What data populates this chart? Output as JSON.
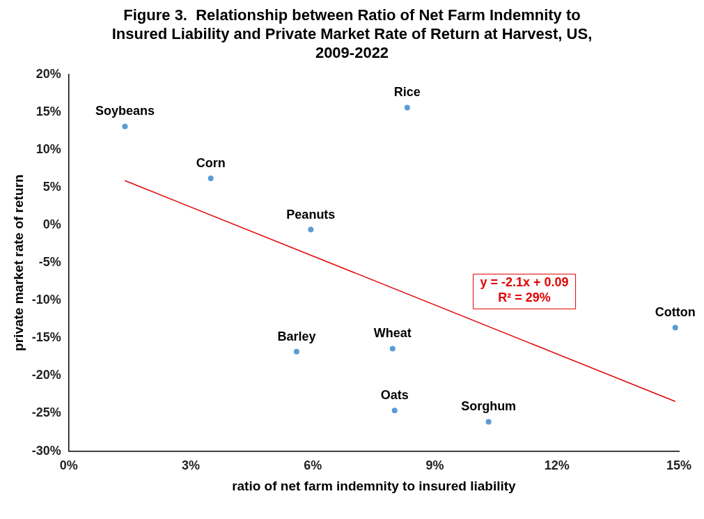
{
  "chart_data": {
    "type": "scatter",
    "title": "Figure 3.  Relationship between Ratio of Net Farm Indemnity to Insured Liability and Private Market Rate of Return at Harvest, US, 2009-2022",
    "xlabel": "ratio of net farm indemnity to insured liability",
    "ylabel": "private market rate of return",
    "xlim": [
      0,
      15
    ],
    "xticks": [
      {
        "value": 0,
        "label": "0%"
      },
      {
        "value": 3,
        "label": "3%"
      },
      {
        "value": 6,
        "label": "6%"
      },
      {
        "value": 9,
        "label": "9%"
      },
      {
        "value": 12,
        "label": "12%"
      },
      {
        "value": 15,
        "label": "15%"
      }
    ],
    "ylim": [
      -30,
      20
    ],
    "yticks": [
      {
        "value": -30,
        "label": "-30%"
      },
      {
        "value": -25,
        "label": "-25%"
      },
      {
        "value": -20,
        "label": "-20%"
      },
      {
        "value": -15,
        "label": "-15%"
      },
      {
        "value": -10,
        "label": "-10%"
      },
      {
        "value": -5,
        "label": "-5%"
      },
      {
        "value": 0,
        "label": "0%"
      },
      {
        "value": 5,
        "label": "5%"
      },
      {
        "value": 10,
        "label": "10%"
      },
      {
        "value": 15,
        "label": "15%"
      },
      {
        "value": 20,
        "label": "20%"
      }
    ],
    "grid": false,
    "legend": false,
    "marker": "circle",
    "series": [
      {
        "color": "#5b9bd5",
        "x": [
          1.38,
          3.49,
          8.32,
          5.95,
          5.6,
          7.96,
          8.01,
          10.32,
          14.91
        ],
        "values": [
          13.1,
          6.2,
          15.6,
          -0.6,
          -16.8,
          -16.4,
          -24.6,
          -26.1,
          -13.6
        ]
      },
      {
        "type": "line",
        "color": "#e00000",
        "marker": "none",
        "x": [
          1.38,
          14.91
        ],
        "values": [
          5.9,
          -23.4
        ]
      }
    ],
    "annotations": [
      {
        "text": "Soybeans",
        "x": 1.38,
        "y": 13.1
      },
      {
        "text": "Corn",
        "x": 3.49,
        "y": 6.2
      },
      {
        "text": "Rice",
        "x": 8.32,
        "y": 15.6
      },
      {
        "text": "Peanuts",
        "x": 5.95,
        "y": -0.6
      },
      {
        "text": "Barley",
        "x": 5.6,
        "y": -16.8
      },
      {
        "text": "Wheat",
        "x": 7.96,
        "y": -16.4
      },
      {
        "text": "Oats",
        "x": 8.01,
        "y": -24.6
      },
      {
        "text": "Sorghum",
        "x": 10.32,
        "y": -26.1
      },
      {
        "text": "Cotton",
        "x": 14.91,
        "y": -13.6
      },
      "y = -2.1x + 0.09",
      "R² = 29%"
    ]
  }
}
